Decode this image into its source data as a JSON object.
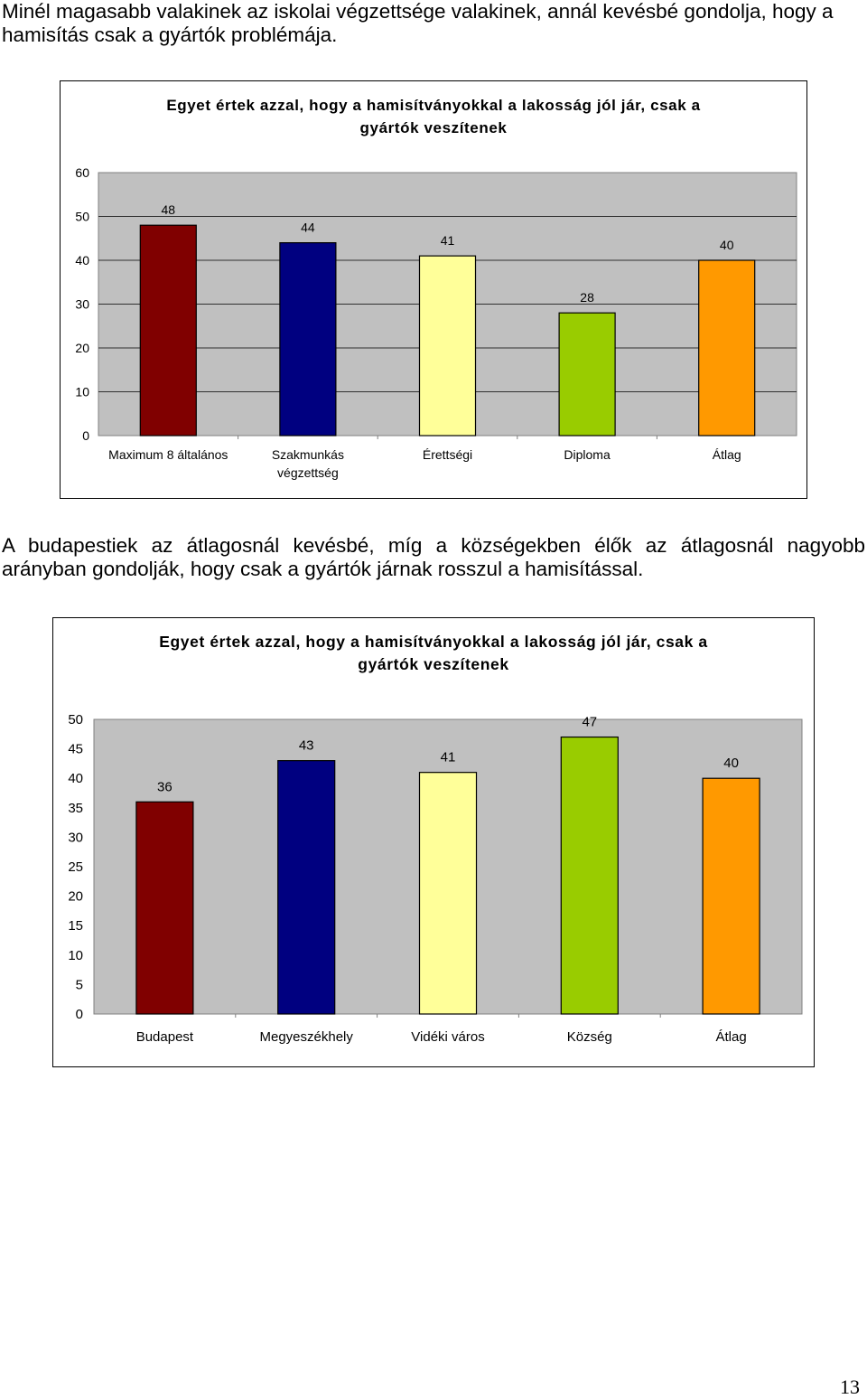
{
  "paragraph1": "Minél magasabb valakinek az iskolai végzettsége valakinek, annál kevésbé gondolja, hogy a hamisítás csak a gyártók problémája.",
  "paragraph2": "A budapestiek az átlagosnál kevésbé, míg a községekben élők az átlagosnál nagyobb arányban gondolják, hogy csak a gyártók járnak rosszul a hamisítással.",
  "page_number": "13",
  "plot_bg": "#c0c0c0",
  "chart_data": [
    {
      "type": "bar",
      "title": "Egyet értek azzal, hogy a hamisítványokkal a lakosság jól jár, csak a gyártók veszítenek",
      "categories": [
        "Maximum 8 általános",
        "Szakmunkás végzettség",
        "Érettségi",
        "Diploma",
        "Átlag"
      ],
      "values": [
        48,
        44,
        41,
        28,
        40
      ],
      "colors": [
        "#800000",
        "#000080",
        "#ffff99",
        "#99cc00",
        "#ff9900"
      ],
      "ylim": [
        0,
        60
      ],
      "yticks": [
        0,
        10,
        20,
        30,
        40,
        50,
        60
      ],
      "grid": true,
      "xlabel": "",
      "ylabel": ""
    },
    {
      "type": "bar",
      "title": "Egyet értek azzal, hogy a hamisítványokkal a lakosság jól jár, csak a gyártók veszítenek",
      "categories": [
        "Budapest",
        "Megyeszékhely",
        "Vidéki város",
        "Község",
        "Átlag"
      ],
      "values": [
        36,
        43,
        41,
        47,
        40
      ],
      "colors": [
        "#800000",
        "#000080",
        "#ffff99",
        "#99cc00",
        "#ff9900"
      ],
      "ylim": [
        0,
        50
      ],
      "yticks": [
        0,
        5,
        10,
        15,
        20,
        25,
        30,
        35,
        40,
        45,
        50
      ],
      "grid": false,
      "xlabel": "",
      "ylabel": ""
    }
  ]
}
